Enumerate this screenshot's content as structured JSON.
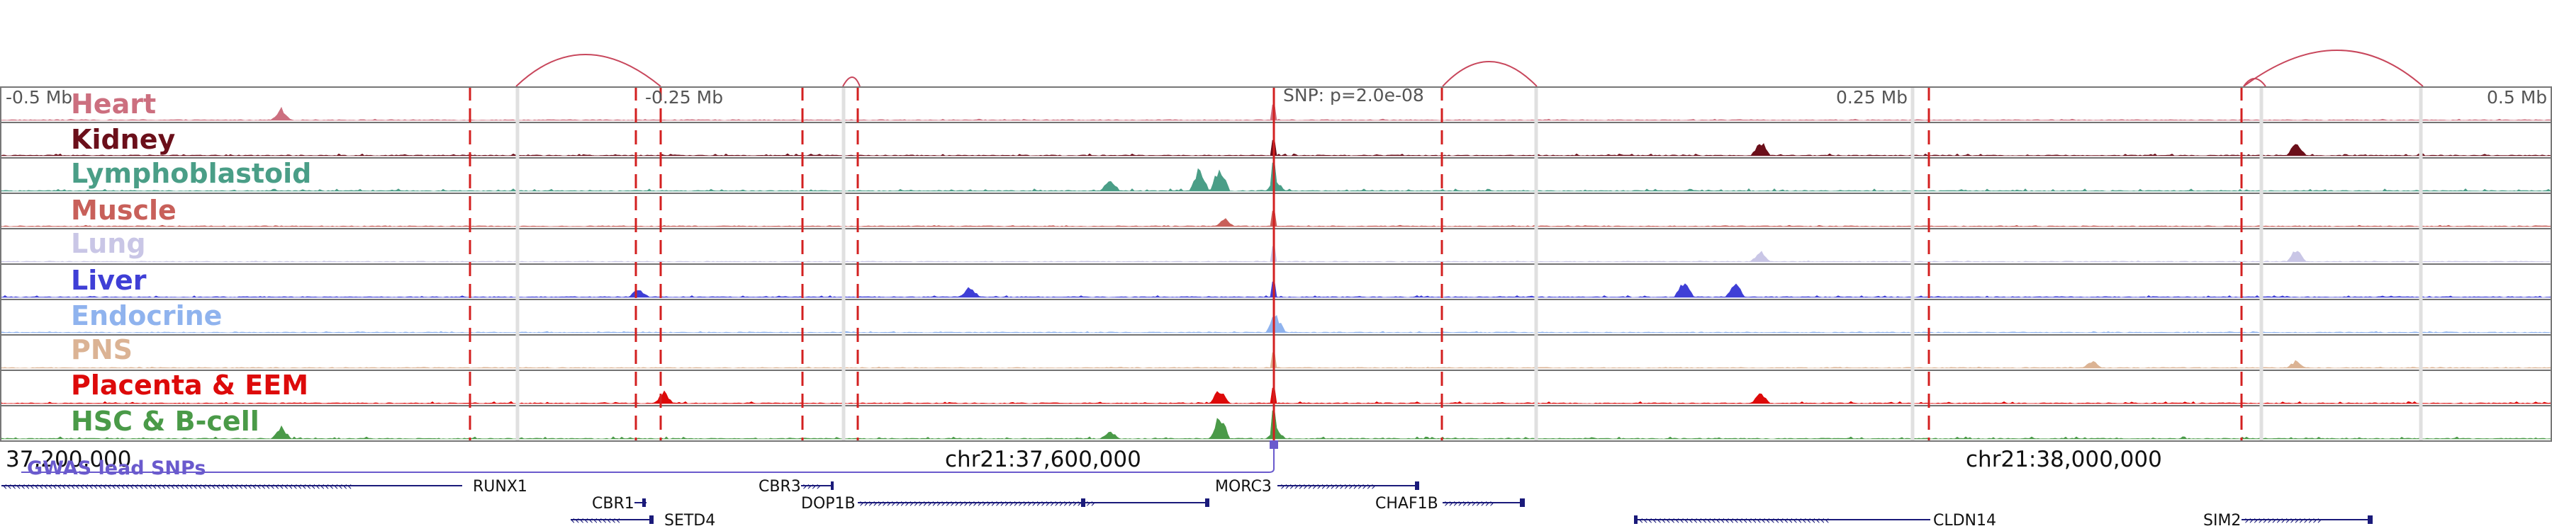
{
  "colors": {
    "loop": "#c8475c",
    "lead_snp": "#d32020",
    "highlight": "#e0e0e0",
    "gwas": "#6a5acd",
    "gene": "#1a1a7a"
  },
  "scale": {
    "left": "-0.5 Mb",
    "quarter_left": "-0.25 Mb",
    "center": "SNP: p=2.0e-08",
    "quarter_right": "0.25 Mb",
    "right": "0.5 Mb"
  },
  "tracks": [
    {
      "name": "Heart",
      "color": "#cc6f7f",
      "activity": 0.4,
      "peaks": [
        [
          0.11,
          0.45
        ]
      ]
    },
    {
      "name": "Kidney",
      "color": "#6b0f1a",
      "activity": 0.6,
      "peaks": [
        [
          0.69,
          0.6
        ],
        [
          0.9,
          0.5
        ]
      ]
    },
    {
      "name": "Lymphoblastoid",
      "color": "#4a9e87",
      "activity": 0.7,
      "peaks": [
        [
          0.435,
          0.5
        ],
        [
          0.47,
          0.9
        ],
        [
          0.478,
          1.0
        ],
        [
          0.5,
          0.45
        ]
      ]
    },
    {
      "name": "Muscle",
      "color": "#c8605a",
      "activity": 0.4,
      "peaks": [
        [
          0.48,
          0.3
        ]
      ]
    },
    {
      "name": "Lung",
      "color": "#c9c6e6",
      "activity": 0.35,
      "peaks": [
        [
          0.69,
          0.45
        ],
        [
          0.9,
          0.5
        ]
      ]
    },
    {
      "name": "Liver",
      "color": "#3f3fd6",
      "activity": 0.55,
      "peaks": [
        [
          0.38,
          0.45
        ],
        [
          0.66,
          0.7
        ],
        [
          0.68,
          0.6
        ],
        [
          0.25,
          0.35
        ]
      ]
    },
    {
      "name": "Endocrine",
      "color": "#8fb3ee",
      "activity": 0.4,
      "peaks": [
        [
          0.5,
          0.7
        ]
      ]
    },
    {
      "name": "PNS",
      "color": "#dbb394",
      "activity": 0.35,
      "peaks": [
        [
          0.82,
          0.3
        ],
        [
          0.9,
          0.3
        ]
      ]
    },
    {
      "name": "Placenta & EEM",
      "color": "#dd0a0a",
      "activity": 0.6,
      "peaks": [
        [
          0.26,
          0.45
        ],
        [
          0.478,
          0.6
        ],
        [
          0.69,
          0.4
        ]
      ]
    },
    {
      "name": "HSC & B-cell",
      "color": "#4a9a48",
      "activity": 0.65,
      "peaks": [
        [
          0.11,
          0.5
        ],
        [
          0.435,
          0.35
        ],
        [
          0.478,
          1.0
        ],
        [
          0.5,
          0.4
        ]
      ]
    }
  ],
  "coordinates": {
    "left": "37,200,000",
    "center": "chr21:37,600,000",
    "right": "chr21:38,000,000"
  },
  "gwas_label": "GWAS lead SNPs",
  "genes": [
    {
      "name": "RUNX1"
    },
    {
      "name": "CBR3"
    },
    {
      "name": "MORC3"
    },
    {
      "name": "CBR1"
    },
    {
      "name": "DOP1B"
    },
    {
      "name": "CHAF1B"
    },
    {
      "name": "SETD4"
    },
    {
      "name": "CLDN14"
    },
    {
      "name": "SIM2"
    }
  ]
}
